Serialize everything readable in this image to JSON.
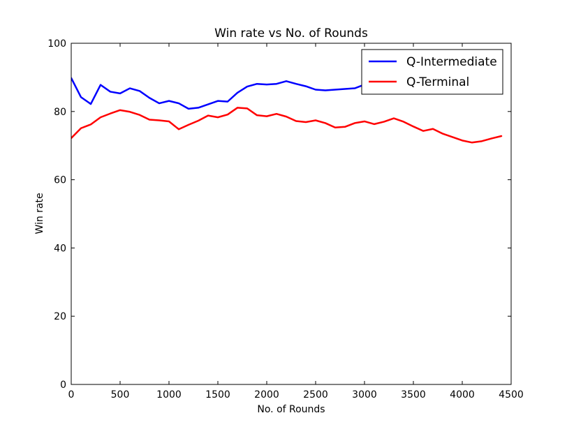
{
  "chart_data": {
    "type": "line",
    "title": "Win rate vs No. of Rounds",
    "xlabel": "No. of Rounds",
    "ylabel": "Win rate",
    "xlim": [
      0,
      4500
    ],
    "ylim": [
      0,
      100
    ],
    "xticks": [
      0,
      500,
      1000,
      1500,
      2000,
      2500,
      3000,
      3500,
      4000,
      4500
    ],
    "yticks": [
      0,
      20,
      40,
      60,
      80,
      100
    ],
    "grid": false,
    "legend_position": "top-right",
    "x": [
      0,
      100,
      200,
      300,
      400,
      500,
      600,
      700,
      800,
      900,
      1000,
      1100,
      1200,
      1300,
      1400,
      1500,
      1600,
      1700,
      1800,
      1900,
      2000,
      2100,
      2200,
      2300,
      2400,
      2500,
      2600,
      2700,
      2800,
      2900,
      3000,
      3100,
      3200,
      3300,
      3400,
      3500,
      3600,
      3700,
      3800,
      3900,
      4000,
      4100,
      4200,
      4300,
      4400
    ],
    "series": [
      {
        "name": "Q-Intermediate",
        "color": "#0000ff",
        "values": [
          89.8,
          84.2,
          82.2,
          87.8,
          85.8,
          85.3,
          86.8,
          86.0,
          84.0,
          82.4,
          83.1,
          82.4,
          80.8,
          81.1,
          82.1,
          83.1,
          82.9,
          85.5,
          87.3,
          88.1,
          87.9,
          88.1,
          88.9,
          88.1,
          87.4,
          86.4,
          86.2,
          86.4,
          86.6,
          86.8,
          87.9,
          88.5,
          88.8,
          89.1,
          89.4,
          89.6,
          89.8,
          89.9,
          90.0,
          90.1,
          90.2,
          90.2,
          90.3,
          90.3,
          90.4
        ]
      },
      {
        "name": "Q-Terminal",
        "color": "#ff0000",
        "values": [
          72.2,
          75.1,
          76.2,
          78.3,
          79.4,
          80.4,
          79.9,
          79.0,
          77.6,
          77.4,
          77.1,
          74.8,
          76.1,
          77.3,
          78.8,
          78.3,
          79.1,
          81.1,
          80.9,
          78.9,
          78.6,
          79.3,
          78.5,
          77.2,
          76.9,
          77.4,
          76.6,
          75.3,
          75.5,
          76.6,
          77.1,
          76.3,
          77.0,
          78.0,
          77.0,
          75.6,
          74.3,
          74.9,
          73.5,
          72.5,
          71.5,
          70.9,
          71.3,
          72.1,
          72.8
        ]
      }
    ]
  }
}
